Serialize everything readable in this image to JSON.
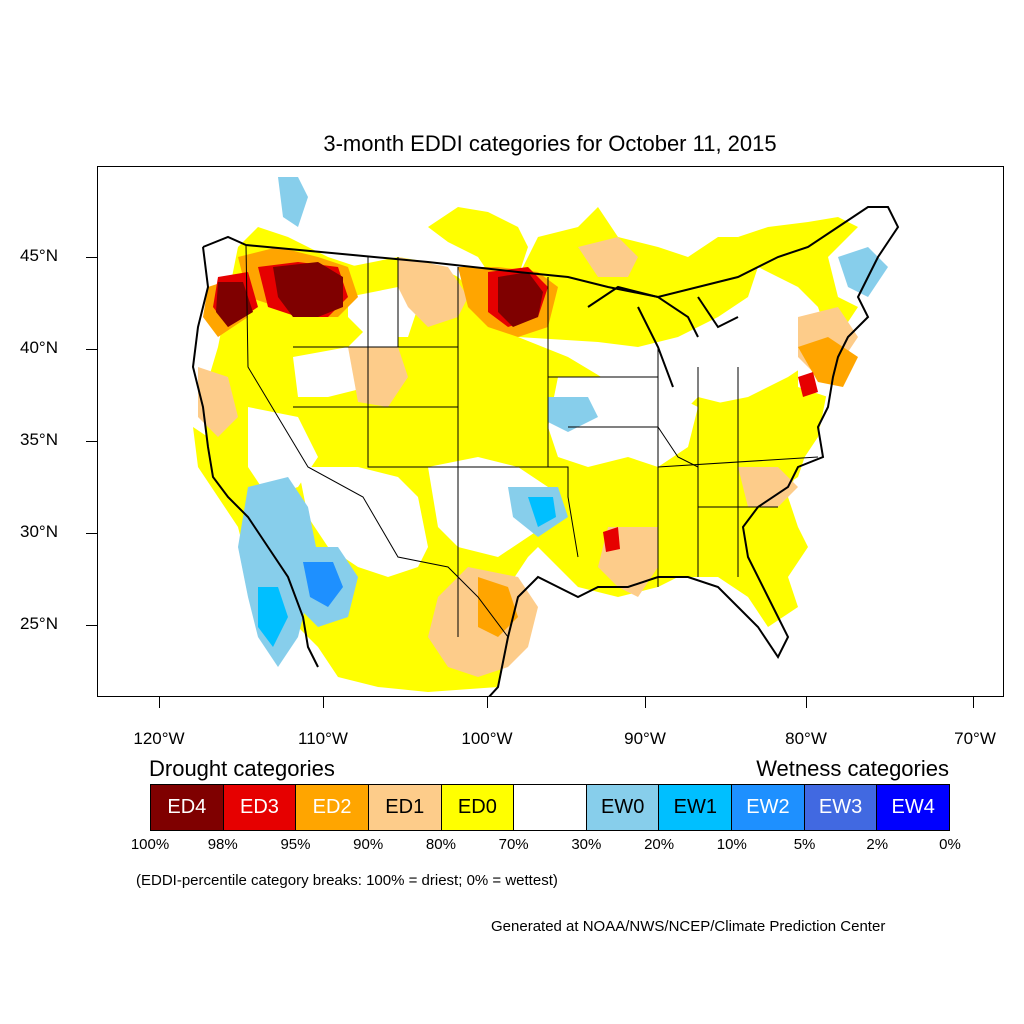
{
  "title": "3-month EDDI categories for October 11, 2015",
  "lat_labels": [
    "45°N",
    "40°N",
    "35°N",
    "30°N",
    "25°N"
  ],
  "lon_labels": [
    "120°W",
    "110°W",
    "100°W",
    "90°W",
    "80°W",
    "70°W"
  ],
  "legend": {
    "drought_title": "Drought categories",
    "wetness_title": "Wetness categories",
    "categories": [
      {
        "label": "ED4",
        "color": "#7f0000",
        "text_color": "#ffffff"
      },
      {
        "label": "ED3",
        "color": "#e60000",
        "text_color": "#ffffff"
      },
      {
        "label": "ED2",
        "color": "#ffa500",
        "text_color": "#ffffff"
      },
      {
        "label": "ED1",
        "color": "#fdcc8a",
        "text_color": "#000000"
      },
      {
        "label": "ED0",
        "color": "#ffff00",
        "text_color": "#000000"
      },
      {
        "label": "",
        "color": "#ffffff",
        "text_color": "#000000"
      },
      {
        "label": "EW0",
        "color": "#87ceeb",
        "text_color": "#000000"
      },
      {
        "label": "EW1",
        "color": "#00bfff",
        "text_color": "#000000"
      },
      {
        "label": "EW2",
        "color": "#1e90ff",
        "text_color": "#ffffff"
      },
      {
        "label": "EW3",
        "color": "#4169e1",
        "text_color": "#ffffff"
      },
      {
        "label": "EW4",
        "color": "#0000ff",
        "text_color": "#ffffff"
      }
    ],
    "breaks": [
      "100%",
      "98%",
      "95%",
      "90%",
      "80%",
      "70%",
      "30%",
      "20%",
      "10%",
      "5%",
      "2%",
      "0%"
    ]
  },
  "note": "(EDDI-percentile category breaks: 100% = driest; 0% = wettest)",
  "credit": "Generated at NOAA/NWS/NCEP/Climate Prediction Center"
}
